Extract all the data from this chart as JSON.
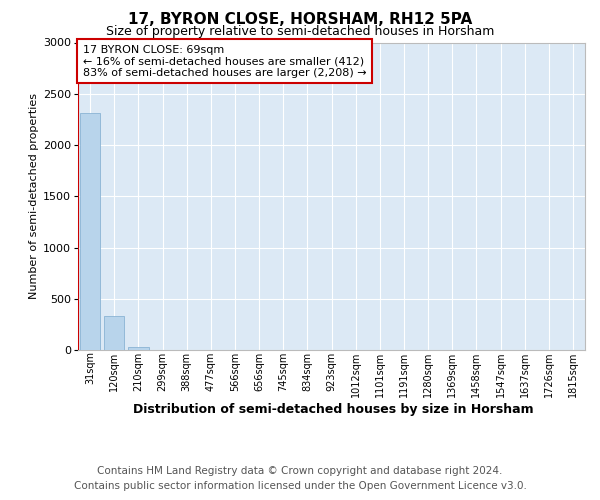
{
  "title": "17, BYRON CLOSE, HORSHAM, RH12 5PA",
  "subtitle": "Size of property relative to semi-detached houses in Horsham",
  "xlabel": "Distribution of semi-detached houses by size in Horsham",
  "ylabel": "Number of semi-detached properties",
  "categories": [
    "31sqm",
    "120sqm",
    "210sqm",
    "299sqm",
    "388sqm",
    "477sqm",
    "566sqm",
    "656sqm",
    "745sqm",
    "834sqm",
    "923sqm",
    "1012sqm",
    "1101sqm",
    "1191sqm",
    "1280sqm",
    "1369sqm",
    "1458sqm",
    "1547sqm",
    "1637sqm",
    "1726sqm",
    "1815sqm"
  ],
  "values": [
    2310,
    335,
    30,
    0,
    0,
    0,
    0,
    0,
    0,
    0,
    0,
    0,
    0,
    0,
    0,
    0,
    0,
    0,
    0,
    0,
    0
  ],
  "bar_color": "#b8d4eb",
  "bar_edge_color": "#8ab4d4",
  "plot_bg_color": "#dce9f5",
  "ylim": [
    0,
    3000
  ],
  "yticks": [
    0,
    500,
    1000,
    1500,
    2000,
    2500,
    3000
  ],
  "property_line_x": -0.5,
  "property_line_color": "#cc0000",
  "annotation_text": "17 BYRON CLOSE: 69sqm\n← 16% of semi-detached houses are smaller (412)\n83% of semi-detached houses are larger (2,208) →",
  "annotation_box_color": "#cc0000",
  "footer_line1": "Contains HM Land Registry data © Crown copyright and database right 2024.",
  "footer_line2": "Contains public sector information licensed under the Open Government Licence v3.0.",
  "title_fontsize": 11,
  "subtitle_fontsize": 9,
  "ylabel_fontsize": 8,
  "xlabel_fontsize": 9,
  "tick_fontsize": 7,
  "annot_fontsize": 8,
  "footer_fontsize": 7.5
}
